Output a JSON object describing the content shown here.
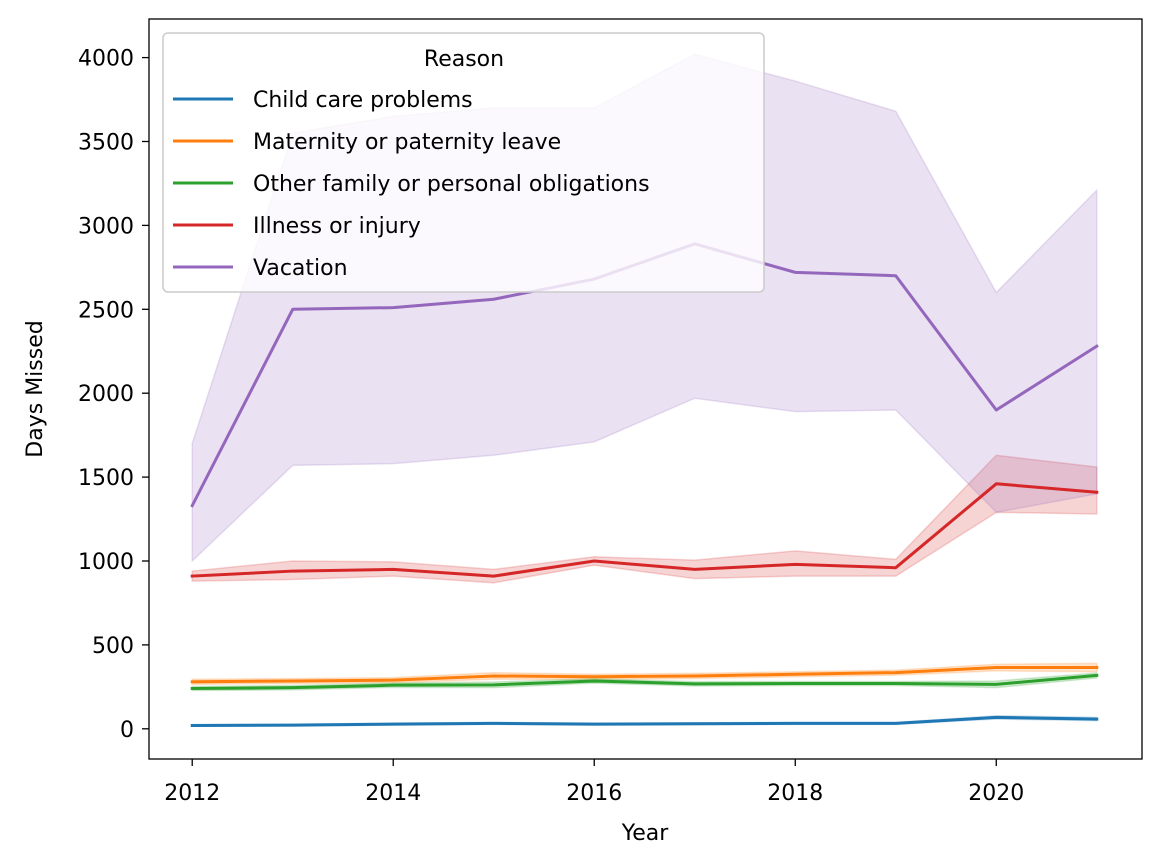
{
  "chart_data": {
    "type": "line",
    "xlabel": "Year",
    "ylabel": "Days Missed",
    "xlim": [
      2011.57,
      2021.45
    ],
    "ylim": [
      -180,
      4230
    ],
    "xticks": [
      2012,
      2014,
      2016,
      2018,
      2020
    ],
    "yticks": [
      0,
      500,
      1000,
      1500,
      2000,
      2500,
      3000,
      3500,
      4000
    ],
    "grid": false,
    "legend": {
      "title": "Reason",
      "placement": "top-left"
    },
    "x": [
      2012,
      2013,
      2014,
      2015,
      2016,
      2017,
      2018,
      2019,
      2020,
      2021
    ],
    "series": [
      {
        "name": "Child care problems",
        "color": "#1f77b4",
        "values": [
          20,
          22,
          28,
          32,
          28,
          30,
          32,
          32,
          68,
          58
        ],
        "ci_low": [
          15,
          17,
          22,
          26,
          22,
          24,
          26,
          26,
          58,
          48
        ],
        "ci_high": [
          25,
          27,
          34,
          38,
          34,
          36,
          38,
          38,
          78,
          68
        ]
      },
      {
        "name": "Maternity or paternity leave",
        "color": "#ff7f0e",
        "values": [
          280,
          285,
          290,
          315,
          310,
          315,
          325,
          335,
          365,
          365
        ],
        "ci_low": [
          265,
          270,
          275,
          295,
          295,
          300,
          310,
          320,
          345,
          340
        ],
        "ci_high": [
          295,
          300,
          305,
          335,
          325,
          330,
          340,
          350,
          385,
          390
        ]
      },
      {
        "name": "Other family or personal obligations",
        "color": "#2ca02c",
        "values": [
          240,
          245,
          260,
          262,
          285,
          268,
          270,
          270,
          265,
          318
        ],
        "ci_low": [
          228,
          232,
          247,
          245,
          272,
          255,
          258,
          258,
          245,
          303
        ],
        "ci_high": [
          252,
          258,
          273,
          279,
          298,
          281,
          282,
          282,
          285,
          333
        ]
      },
      {
        "name": "Illness or injury",
        "color": "#d62728",
        "values": [
          910,
          940,
          950,
          910,
          1000,
          950,
          980,
          960,
          1460,
          1410
        ],
        "ci_low": [
          880,
          890,
          910,
          870,
          975,
          895,
          910,
          910,
          1290,
          1280
        ],
        "ci_high": [
          940,
          1000,
          995,
          950,
          1025,
          1005,
          1060,
          1010,
          1630,
          1560
        ]
      },
      {
        "name": "Vacation",
        "color": "#9467bd",
        "values": [
          1330,
          2500,
          2510,
          2560,
          2680,
          2890,
          2720,
          2700,
          1900,
          2280
        ],
        "ci_low": [
          1000,
          1570,
          1580,
          1630,
          1710,
          1970,
          1890,
          1900,
          1290,
          1400
        ],
        "ci_high": [
          1700,
          3550,
          3650,
          3700,
          3700,
          4020,
          3860,
          3680,
          2600,
          3210
        ]
      }
    ]
  }
}
